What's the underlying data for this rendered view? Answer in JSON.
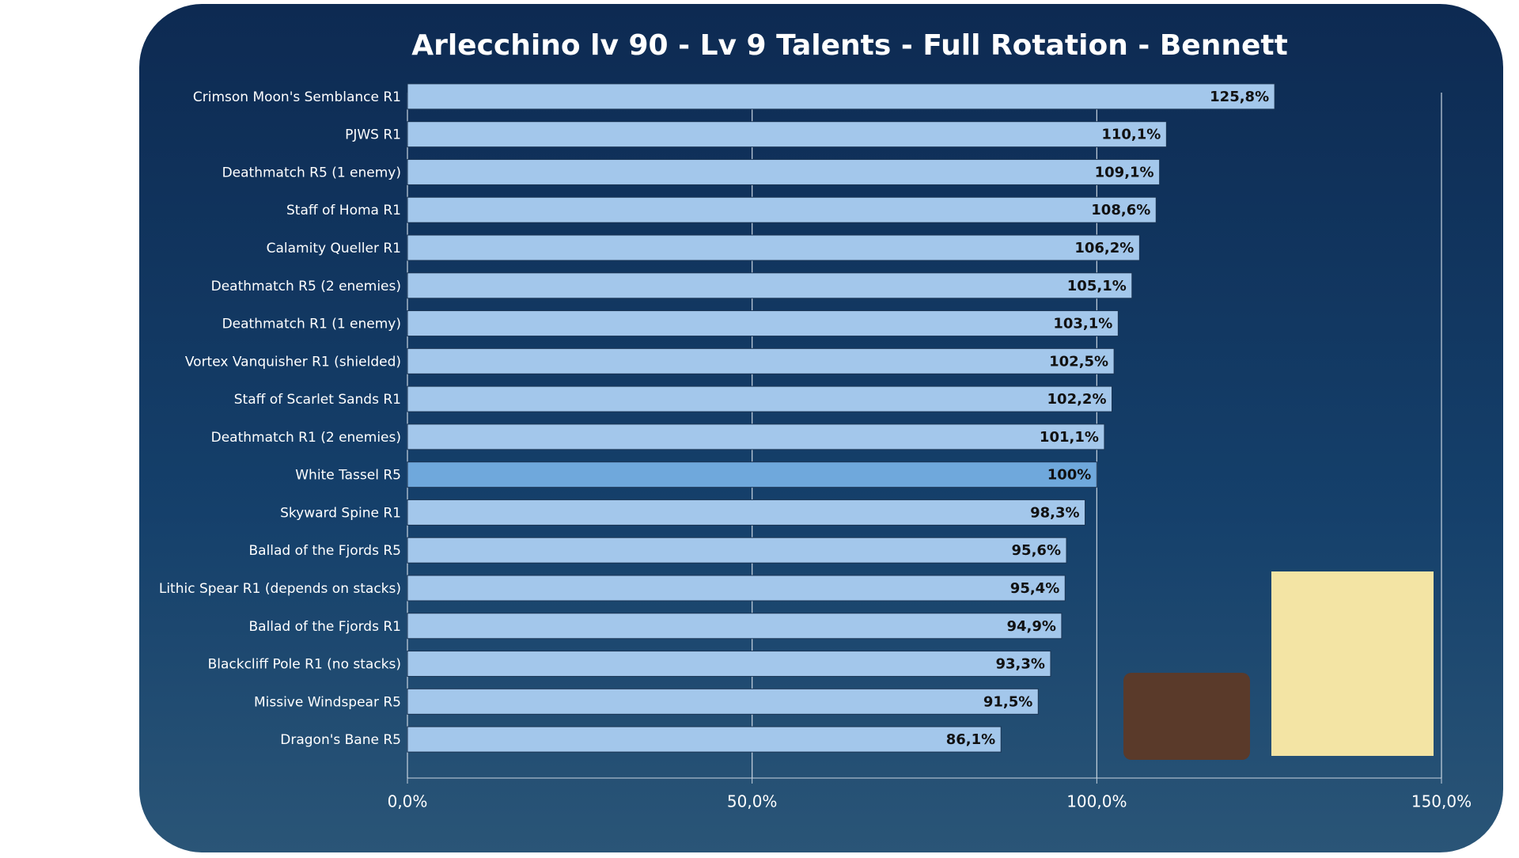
{
  "chart_data": {
    "type": "hbar",
    "title": "Arlecchino lv 90 - Lv 9 Talents - Full Rotation - Bennett",
    "categories": [
      "Crimson Moon's Semblance R1",
      "PJWS R1",
      "Deathmatch R5 (1 enemy)",
      "Staff of Homa R1",
      "Calamity Queller R1",
      "Deathmatch R5 (2 enemies)",
      "Deathmatch R1 (1 enemy)",
      "Vortex Vanquisher R1 (shielded)",
      "Staff of Scarlet Sands R1",
      "Deathmatch R1 (2 enemies)",
      "White Tassel R5",
      "Skyward Spine R1",
      "Ballad of the Fjords R5",
      "Lithic Spear R1 (depends on stacks)",
      "Ballad of the Fjords R1",
      "Blackcliff Pole R1 (no stacks)",
      "Missive Windspear R5",
      "Dragon's Bane R5"
    ],
    "values": [
      125.8,
      110.1,
      109.1,
      108.6,
      106.2,
      105.1,
      103.1,
      102.5,
      102.2,
      101.1,
      100,
      98.3,
      95.6,
      95.4,
      94.9,
      93.3,
      91.5,
      86.1
    ],
    "value_labels": [
      "125,8%",
      "110,1%",
      "109,1%",
      "108,6%",
      "106,2%",
      "105,1%",
      "103,1%",
      "102,5%",
      "102,2%",
      "101,1%",
      "100%",
      "98,3%",
      "95,6%",
      "95,4%",
      "94,9%",
      "93,3%",
      "91,5%",
      "86,1%"
    ],
    "colors": [
      "#a3c7eb",
      "#a3c7eb",
      "#a3c7eb",
      "#a3c7eb",
      "#a3c7eb",
      "#a3c7eb",
      "#a3c7eb",
      "#a3c7eb",
      "#a3c7eb",
      "#a3c7eb",
      "#6fa8dc",
      "#a3c7eb",
      "#a3c7eb",
      "#a3c7eb",
      "#a3c7eb",
      "#a3c7eb",
      "#a3c7eb",
      "#a3c7eb"
    ],
    "xlim": [
      0,
      150
    ],
    "xticks": [
      {
        "value": 0,
        "label": "0,0%"
      },
      {
        "value": 50,
        "label": "50,0%"
      },
      {
        "value": 100,
        "label": "100,0%"
      },
      {
        "value": 150,
        "label": "150,0%"
      }
    ],
    "grid": true
  }
}
